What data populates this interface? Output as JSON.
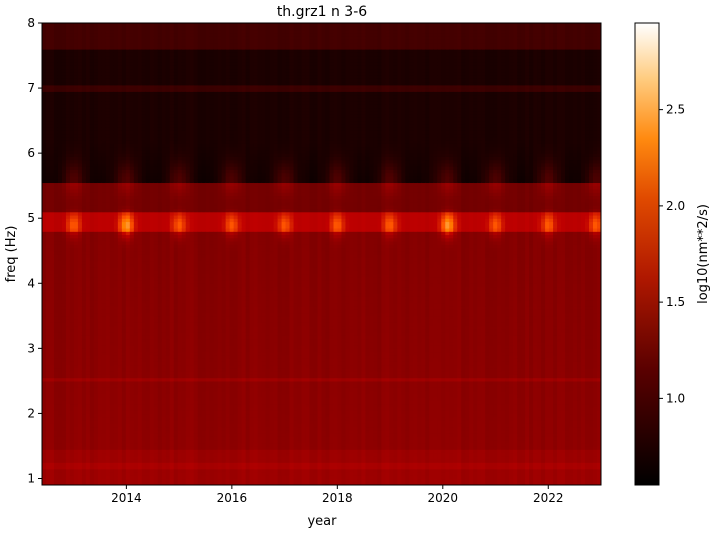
{
  "chart_data": {
    "type": "heatmap",
    "title": "th.grz1 n 3-6",
    "xlabel": "year",
    "ylabel": "freq (Hz)",
    "xlim": [
      2012.4,
      2023.0
    ],
    "ylim": [
      0.9,
      8.0
    ],
    "x_ticks": [
      2014,
      2016,
      2018,
      2020,
      2022
    ],
    "y_ticks": [
      1,
      2,
      3,
      4,
      5,
      6,
      7,
      8
    ],
    "grid": false,
    "colormap": "gist_heat",
    "colorbar": {
      "label": "log10(nm**2/s)",
      "range": [
        0.55,
        2.95
      ],
      "ticks": [
        1.0,
        1.5,
        2.0,
        2.5
      ]
    },
    "features": {
      "band_peak_freq_hz": 4.9,
      "band_peak_years": [
        2013.0,
        2014.0,
        2015.0,
        2016.0,
        2017.0,
        2018.0,
        2019.0,
        2020.1,
        2021.0,
        2022.0,
        2022.9
      ],
      "strongest_peaks": [
        2014.0,
        2020.1
      ],
      "background_level": 1.5,
      "high_freq_level": 0.75
    }
  }
}
